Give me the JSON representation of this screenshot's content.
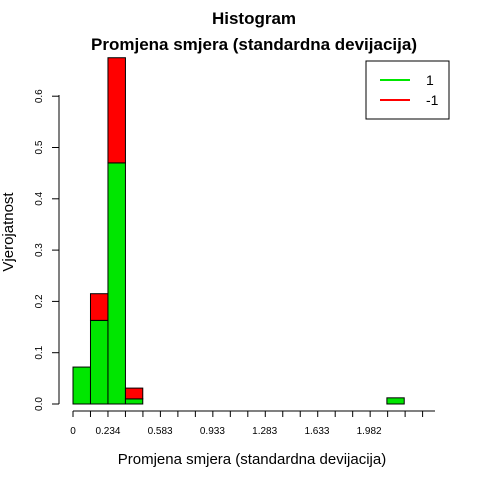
{
  "chart_data": {
    "type": "bar",
    "title": "Histogram",
    "subtitle": "Promjena smjera (standardna devijacija)",
    "xlabel": "Promjena smjera (standardna devijacija)",
    "ylabel": "Vjerojatnost",
    "x_tick_labels": [
      "0",
      "0.234",
      "0.583",
      "0.933",
      "1.283",
      "1.633",
      "1.982"
    ],
    "y_tick_labels": [
      "0.0",
      "0.1",
      "0.2",
      "0.3",
      "0.4",
      "0.5",
      "0.6"
    ],
    "xlim": [
      0,
      2.17
    ],
    "ylim": [
      0,
      0.67
    ],
    "grid": false,
    "legend_position": "top-right",
    "stacked": true,
    "bin_edges": [
      0,
      0.117,
      0.234,
      0.351,
      0.467,
      0.584,
      0.7,
      0.817,
      0.934,
      1.051,
      1.167,
      1.284,
      1.401,
      1.517,
      1.634,
      1.751,
      1.867,
      1.984,
      2.101,
      2.217
    ],
    "series": [
      {
        "name": "1",
        "color": "#00E600",
        "values": [
          0.072,
          0.163,
          0.47,
          0.01,
          0,
          0,
          0,
          0,
          0,
          0,
          0,
          0,
          0,
          0,
          0,
          0,
          0,
          0,
          0.012
        ]
      },
      {
        "name": "-1",
        "color": "#FF0000",
        "values": [
          0,
          0.052,
          0.205,
          0.021,
          0,
          0,
          0,
          0,
          0,
          0,
          0,
          0,
          0,
          0,
          0,
          0,
          0,
          0,
          0
        ]
      }
    ]
  }
}
